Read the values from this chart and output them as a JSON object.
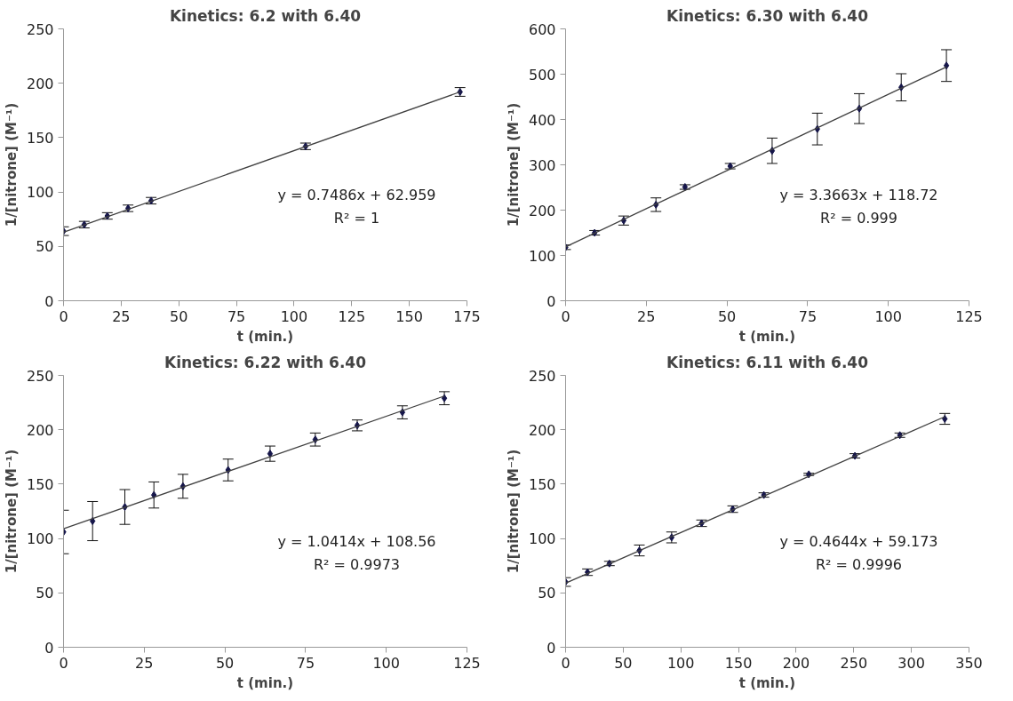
{
  "chart_data": [
    {
      "type": "scatter",
      "title": "Kinetics: 6.2 with 6.40",
      "xlabel": "t (min.)",
      "ylabel": "1/[nitrone] (M⁻¹)",
      "marker": "diamond",
      "grid": false,
      "xlim": [
        0,
        175
      ],
      "xticks": [
        0,
        25,
        50,
        75,
        100,
        125,
        150,
        175
      ],
      "ylim": [
        0,
        250
      ],
      "yticks": [
        0,
        50,
        100,
        150,
        200,
        250
      ],
      "annotations": [
        "y = 0.7486x + 62.959",
        "R² = 1"
      ],
      "series": [
        {
          "color": "#16164a",
          "x": [
            0,
            9,
            19,
            28,
            38,
            105,
            172
          ],
          "values": [
            64,
            70,
            78,
            85,
            92,
            142,
            192
          ],
          "errors": [
            4,
            3,
            3,
            3,
            3,
            3,
            4
          ]
        },
        {
          "type": "line",
          "marker": "none",
          "color": "#404040",
          "x": [
            0,
            172
          ],
          "values": [
            63,
            192
          ]
        }
      ]
    },
    {
      "type": "scatter",
      "title": "Kinetics: 6.30 with 6.40",
      "xlabel": "t (min.)",
      "ylabel": "1/[nitrone] (M⁻¹)",
      "marker": "diamond",
      "grid": false,
      "xlim": [
        0,
        125
      ],
      "xticks": [
        0,
        25,
        50,
        75,
        100,
        125
      ],
      "ylim": [
        0,
        600
      ],
      "yticks": [
        0,
        100,
        200,
        300,
        400,
        500,
        600
      ],
      "annotations": [
        "y = 3.3663x + 118.72",
        "R² = 0.999"
      ],
      "series": [
        {
          "color": "#16164a",
          "x": [
            0,
            9,
            18,
            28,
            37,
            51,
            64,
            78,
            91,
            104,
            118
          ],
          "values": [
            118,
            150,
            177,
            212,
            251,
            297,
            331,
            379,
            424,
            471,
            519
          ],
          "errors": [
            5,
            5,
            10,
            15,
            5,
            6,
            28,
            35,
            33,
            30,
            35
          ]
        },
        {
          "type": "line",
          "marker": "none",
          "color": "#404040",
          "x": [
            0,
            118
          ],
          "values": [
            119,
            516
          ]
        }
      ]
    },
    {
      "type": "scatter",
      "title": "Kinetics: 6.22 with 6.40",
      "xlabel": "t (min.)",
      "ylabel": "1/[nitrone] (M⁻¹)",
      "marker": "diamond",
      "grid": false,
      "xlim": [
        0,
        125
      ],
      "xticks": [
        0,
        25,
        50,
        75,
        100,
        125
      ],
      "ylim": [
        0,
        250
      ],
      "yticks": [
        0,
        50,
        100,
        150,
        200,
        250
      ],
      "annotations": [
        "y = 1.0414x + 108.56",
        "R² = 0.9973"
      ],
      "series": [
        {
          "color": "#16164a",
          "x": [
            0,
            9,
            19,
            28,
            37,
            51,
            64,
            78,
            91,
            105,
            118
          ],
          "values": [
            106,
            116,
            129,
            140,
            148,
            163,
            178,
            191,
            204,
            216,
            229
          ],
          "errors": [
            20,
            18,
            16,
            12,
            11,
            10,
            7,
            6,
            5,
            6,
            6
          ]
        },
        {
          "type": "line",
          "marker": "none",
          "color": "#404040",
          "x": [
            0,
            118
          ],
          "values": [
            109,
            231
          ]
        }
      ]
    },
    {
      "type": "scatter",
      "title": "Kinetics: 6.11 with 6.40",
      "xlabel": "t (min.)",
      "ylabel": "1/[nitrone] (M⁻¹)",
      "marker": "diamond",
      "grid": false,
      "xlim": [
        0,
        350
      ],
      "xticks": [
        0,
        50,
        100,
        150,
        200,
        250,
        300,
        350
      ],
      "ylim": [
        0,
        250
      ],
      "yticks": [
        0,
        50,
        100,
        150,
        200,
        250
      ],
      "annotations": [
        "y = 0.4644x + 59.173",
        "R² = 0.9996"
      ],
      "series": [
        {
          "color": "#16164a",
          "x": [
            0,
            19,
            38,
            64,
            92,
            118,
            145,
            172,
            211,
            251,
            290,
            329
          ],
          "values": [
            60,
            69,
            77,
            89,
            101,
            114,
            127,
            140,
            159,
            176,
            195,
            210
          ],
          "errors": [
            4,
            3,
            2,
            5,
            5,
            3,
            3,
            2,
            1,
            2,
            2,
            5
          ]
        },
        {
          "type": "line",
          "marker": "none",
          "color": "#404040",
          "x": [
            0,
            329
          ],
          "values": [
            59,
            212
          ]
        }
      ]
    }
  ]
}
